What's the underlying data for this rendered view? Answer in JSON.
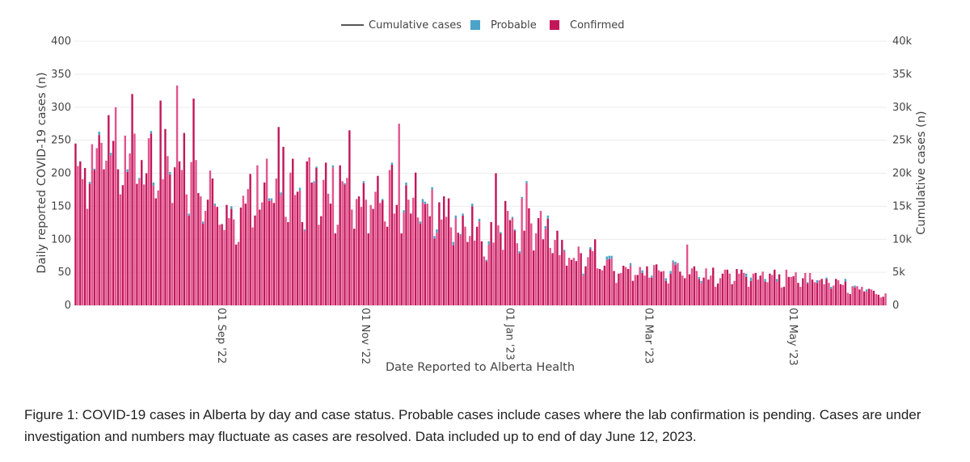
{
  "chart_data": {
    "type": "bar",
    "title": "",
    "xlabel": "Date Reported to Alberta Health",
    "ylabel": "Daily reported COVID-19 cases (n)",
    "y2label": "Cumulative cases (n)",
    "ylim": [
      0,
      400
    ],
    "y2lim": [
      0,
      40000
    ],
    "yticks": [
      "0",
      "50",
      "100",
      "150",
      "200",
      "250",
      "300",
      "350",
      "400"
    ],
    "y2ticks": [
      "0",
      "5k",
      "10k",
      "15k",
      "20k",
      "25k",
      "30k",
      "35k",
      "40k"
    ],
    "xticks": [
      {
        "date": "2022-09-01",
        "label": "01 Sep '22"
      },
      {
        "date": "2022-11-01",
        "label": "01 Nov '22"
      },
      {
        "date": "2023-01-01",
        "label": "01 Jan '23"
      },
      {
        "date": "2023-03-01",
        "label": "01 Mar '23"
      },
      {
        "date": "2023-05-01",
        "label": "01 May '23"
      }
    ],
    "x_range": [
      "2022-07-04",
      "2023-06-12"
    ],
    "grid": true,
    "legend_position": "top-center",
    "legend": [
      {
        "name": "Cumulative cases",
        "type": "line",
        "color": "#555555"
      },
      {
        "name": "Probable",
        "type": "bar",
        "color": "#4ba3c9"
      },
      {
        "name": "Confirmed",
        "type": "bar",
        "color": "#c2185b"
      }
    ],
    "colors": {
      "confirmed": "#c2185b",
      "confirmed_alt": "#e2558d",
      "probable": "#4ba3c9"
    },
    "series_anchors": {
      "name": "Confirmed",
      "points": [
        [
          "2022-07-05",
          205
        ],
        [
          "2022-07-12",
          235
        ],
        [
          "2022-07-19",
          260
        ],
        [
          "2022-07-26",
          240
        ],
        [
          "2022-08-02",
          225
        ],
        [
          "2022-08-09",
          215
        ],
        [
          "2022-08-16",
          240
        ],
        [
          "2022-08-23",
          200
        ],
        [
          "2022-08-30",
          180
        ],
        [
          "2022-09-06",
          125
        ],
        [
          "2022-09-13",
          165
        ],
        [
          "2022-09-20",
          180
        ],
        [
          "2022-09-27",
          195
        ],
        [
          "2022-10-04",
          200
        ],
        [
          "2022-10-11",
          195
        ],
        [
          "2022-10-18",
          200
        ],
        [
          "2022-10-25",
          180
        ],
        [
          "2022-11-01",
          175
        ],
        [
          "2022-11-08",
          180
        ],
        [
          "2022-11-15",
          175
        ],
        [
          "2022-11-22",
          170
        ],
        [
          "2022-11-29",
          160
        ],
        [
          "2022-12-06",
          150
        ],
        [
          "2022-12-13",
          135
        ],
        [
          "2022-12-20",
          125
        ],
        [
          "2022-12-27",
          115
        ],
        [
          "2023-01-03",
          135
        ],
        [
          "2023-01-10",
          135
        ],
        [
          "2023-01-17",
          125
        ],
        [
          "2023-01-24",
          100
        ],
        [
          "2023-01-31",
          80
        ],
        [
          "2023-02-07",
          72
        ],
        [
          "2023-02-14",
          62
        ],
        [
          "2023-02-21",
          55
        ],
        [
          "2023-02-28",
          52
        ],
        [
          "2023-03-07",
          52
        ],
        [
          "2023-03-14",
          55
        ],
        [
          "2023-03-21",
          50
        ],
        [
          "2023-03-28",
          48
        ],
        [
          "2023-04-04",
          45
        ],
        [
          "2023-04-11",
          45
        ],
        [
          "2023-04-18",
          45
        ],
        [
          "2023-04-25",
          45
        ],
        [
          "2023-05-02",
          45
        ],
        [
          "2023-05-09",
          43
        ],
        [
          "2023-05-16",
          38
        ],
        [
          "2023-05-23",
          33
        ],
        [
          "2023-05-30",
          28
        ],
        [
          "2023-06-06",
          22
        ],
        [
          "2023-06-12",
          18
        ]
      ]
    },
    "peaks": [
      [
        "2022-07-21",
        300
      ],
      [
        "2022-07-28",
        320
      ],
      [
        "2022-08-09",
        310
      ],
      [
        "2022-08-16",
        333
      ],
      [
        "2022-08-23",
        313
      ],
      [
        "2022-09-28",
        270
      ],
      [
        "2022-10-28",
        265
      ],
      [
        "2022-11-18",
        275
      ],
      [
        "2022-12-29",
        200
      ],
      [
        "2023-01-11",
        185
      ],
      [
        "2023-02-09",
        100
      ],
      [
        "2023-03-20",
        92
      ]
    ],
    "probable_typical": 2
  },
  "caption": "Figure 1: COVID-19 cases in Alberta by day and case status. Probable cases include cases where the lab confirmation is pending. Cases are under investigation and numbers may fluctuate as cases are resolved. Data included up to end of day June 12, 2023."
}
